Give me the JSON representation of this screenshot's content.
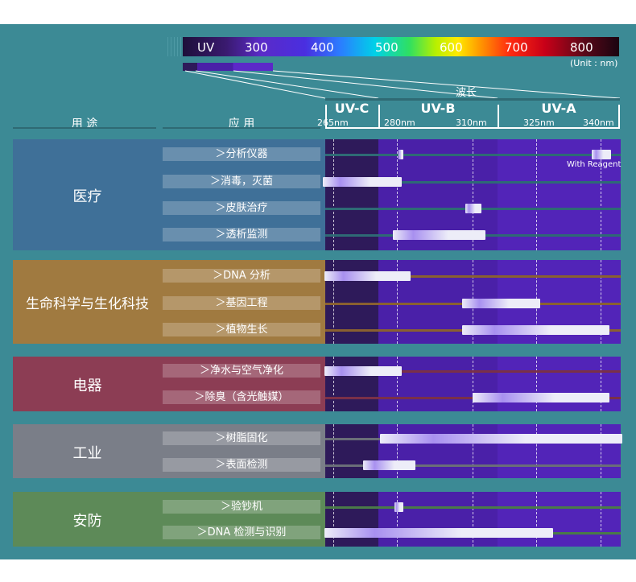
{
  "header": {
    "usage_label": "用 途",
    "application_label": "应 用",
    "wavelength_label": "波长",
    "unit_label": "(Unit : nm)"
  },
  "spectrum": {
    "labels": [
      "UV",
      "300",
      "400",
      "500",
      "600",
      "700",
      "800"
    ]
  },
  "bands": [
    {
      "name": "UV-C",
      "color": "#2e1a5a"
    },
    {
      "name": "UV-B",
      "color": "#4a20a8"
    },
    {
      "name": "UV-A",
      "color": "#5224b8"
    }
  ],
  "wavelength_ticks": [
    "265nm",
    "280nm",
    "310nm",
    "325nm",
    "340nm"
  ],
  "categories": [
    {
      "name": "医疗",
      "color": "#3f7098"
    },
    {
      "name": "生命科学与生化科技",
      "color": "#a07a40"
    },
    {
      "name": "电器",
      "color": "#8c3d54"
    },
    {
      "name": "工业",
      "color": "#7a7e88"
    },
    {
      "name": "安防",
      "color": "#5d8a58"
    }
  ],
  "annotations": {
    "with_reagent": "With Reagent"
  },
  "colors": {
    "background": "#3c8a95",
    "bar_light": "#ededf8",
    "bar_glow": "#a890f0"
  },
  "chart_data": {
    "type": "range-bar",
    "xlabel": "波长",
    "x_unit": "nm",
    "x_ticks": [
      265,
      280,
      310,
      325,
      340
    ],
    "x_axis_anchor": [
      [
        265,
        414
      ],
      [
        280,
        493
      ],
      [
        310,
        587
      ],
      [
        325,
        666
      ],
      [
        340,
        746
      ]
    ],
    "ranges": [
      {
        "category": "医疗",
        "application": "＞分析仪器",
        "segments": [
          [
            280.5,
            282.5
          ],
          [
            338,
            342.5
          ]
        ]
      },
      {
        "category": "医疗",
        "application": "＞消毒，灭菌",
        "segments": [
          [
            262.5,
            282
          ]
        ]
      },
      {
        "category": "医疗",
        "application": "＞皮肤治疗",
        "segments": [
          [
            307,
            312
          ]
        ]
      },
      {
        "category": "医疗",
        "application": "＞透析监测",
        "segments": [
          [
            279,
            313
          ]
        ]
      },
      {
        "category": "生命科学与生化科技",
        "application": "＞DNA 分析",
        "segments": [
          [
            263,
            285.5
          ]
        ]
      },
      {
        "category": "生命科学与生化科技",
        "application": "＞基因工程",
        "segments": [
          [
            306,
            326
          ]
        ]
      },
      {
        "category": "生命科学与生化科技",
        "application": "＞植物生长",
        "segments": [
          [
            306,
            342
          ]
        ]
      },
      {
        "category": "电器",
        "application": "＞净水与空气净化",
        "segments": [
          [
            263,
            282
          ]
        ]
      },
      {
        "category": "电器",
        "application": "＞除臭（含光触媒）",
        "segments": [
          [
            310,
            342
          ]
        ]
      },
      {
        "category": "工业",
        "application": "＞树脂固化",
        "segments": [
          [
            276,
            345
          ]
        ]
      },
      {
        "category": "工业",
        "application": "＞表面检测",
        "segments": [
          [
            272,
            287.5
          ]
        ]
      },
      {
        "category": "安防",
        "application": "＞验钞机",
        "segments": [
          [
            279.5,
            282.5
          ]
        ]
      },
      {
        "category": "安防",
        "application": "＞DNA 检测与识别",
        "segments": [
          [
            263,
            329
          ]
        ]
      }
    ]
  }
}
